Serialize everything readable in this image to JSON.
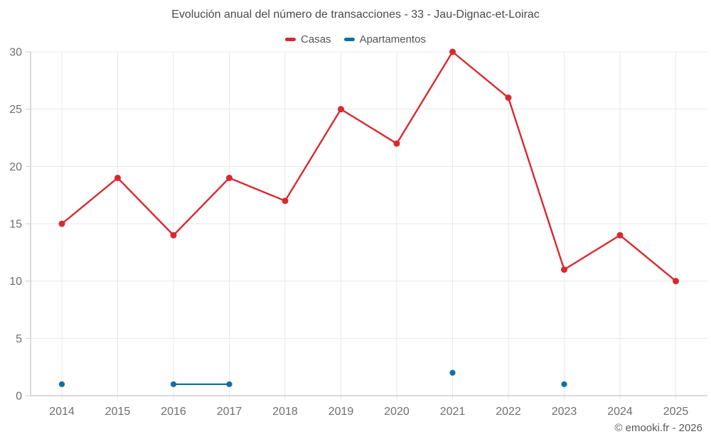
{
  "footer": {
    "copyright": "© emooki.fr - 2026"
  },
  "colors": {
    "grid": "#e7e7e7",
    "axis": "#b6b6b6",
    "tick": "#cfcfcf",
    "tick_label": "#6f6f6f",
    "casas": "#d9292f",
    "apartamentos": "#15709f"
  },
  "chart_data": {
    "type": "line",
    "title": "Evolución anual del número de transacciones - 33 - Jau-Dignac-et-Loirac",
    "x": [
      "2014",
      "2015",
      "2016",
      "2017",
      "2018",
      "2019",
      "2020",
      "2021",
      "2022",
      "2023",
      "2024",
      "2025"
    ],
    "series": [
      {
        "name": "Casas",
        "color": "#d9292f",
        "marker_radius": 4.5,
        "line_width": 2.4,
        "values": [
          15,
          19,
          14,
          19,
          17,
          25,
          22,
          30,
          26,
          11,
          14,
          10
        ]
      },
      {
        "name": "Apartamentos",
        "color": "#15709f",
        "marker_radius": 4.1,
        "line_width": 2.2,
        "values": [
          1,
          null,
          1,
          1,
          null,
          null,
          null,
          2,
          null,
          1,
          null,
          null
        ]
      }
    ],
    "xlabel": "",
    "ylabel": "",
    "ylim": [
      0,
      30
    ],
    "yticks": [
      0,
      5,
      10,
      15,
      20,
      25,
      30
    ],
    "grid": true,
    "legend_position": "top"
  }
}
